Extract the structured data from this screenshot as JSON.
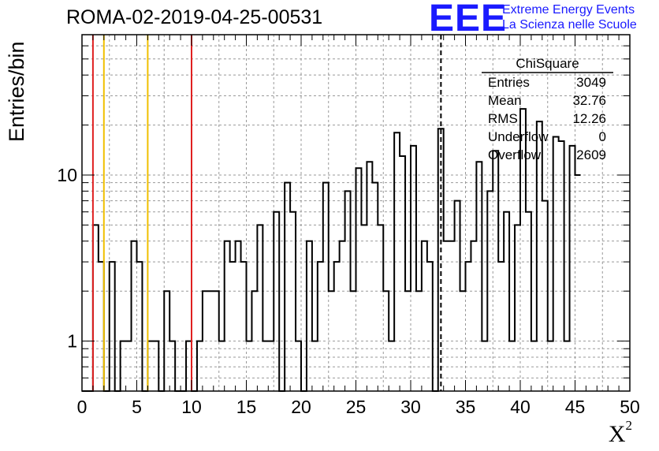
{
  "title": "ROMA-02-2019-04-25-00531",
  "logo": {
    "text": "EEE",
    "line1": "Extreme Energy Events",
    "line2": "La Scienza nelle Scuole"
  },
  "stats_box": {
    "name": "ChiSquare",
    "rows": [
      {
        "label": "Entries",
        "value": "3049"
      },
      {
        "label": "Mean",
        "value": "32.76"
      },
      {
        "label": "RMS",
        "value": "12.26"
      },
      {
        "label": "Underflow",
        "value": "0"
      },
      {
        "label": "Overflow",
        "value": "2609"
      }
    ]
  },
  "chart_data": {
    "type": "histogram",
    "title": "ROMA-02-2019-04-25-00531",
    "xlabel": "X",
    "xlabel_superscript": "2",
    "ylabel": "Entries/bin",
    "xlim": [
      0,
      50
    ],
    "ylim": [
      0.5,
      70
    ],
    "yscale": "log",
    "grid": true,
    "bin_width": 0.5,
    "x_ticks": [
      "0",
      "5",
      "10",
      "15",
      "20",
      "25",
      "30",
      "35",
      "40",
      "45",
      "50"
    ],
    "y_ticks": [
      "1",
      "10"
    ],
    "values": [
      0,
      0,
      5,
      3,
      0,
      3,
      0,
      1,
      1,
      4,
      3,
      0,
      1,
      1,
      0,
      2,
      1,
      0,
      0,
      1,
      0,
      1,
      2,
      2,
      2,
      1,
      4,
      3,
      4,
      3,
      1,
      2,
      5,
      1,
      1,
      6,
      0,
      9,
      6,
      1,
      0,
      4,
      1,
      3,
      9,
      2,
      3,
      4,
      8,
      2,
      11,
      5,
      12,
      9,
      5,
      2,
      1,
      18,
      13,
      2,
      15,
      2,
      4,
      3,
      0,
      19,
      4,
      4,
      7,
      2,
      3,
      4,
      12,
      1,
      8,
      14,
      3,
      6,
      1,
      5,
      25,
      6,
      1,
      21,
      7,
      1,
      17,
      16,
      1,
      15,
      10
    ],
    "vertical_lines": [
      {
        "x": 1,
        "color": "#e02020",
        "style": "solid"
      },
      {
        "x": 2,
        "color": "#f0c000",
        "style": "solid"
      },
      {
        "x": 6,
        "color": "#f0c000",
        "style": "solid"
      },
      {
        "x": 10,
        "color": "#e02020",
        "style": "solid"
      },
      {
        "x": 32.76,
        "color": "#000000",
        "style": "dashed"
      }
    ]
  }
}
